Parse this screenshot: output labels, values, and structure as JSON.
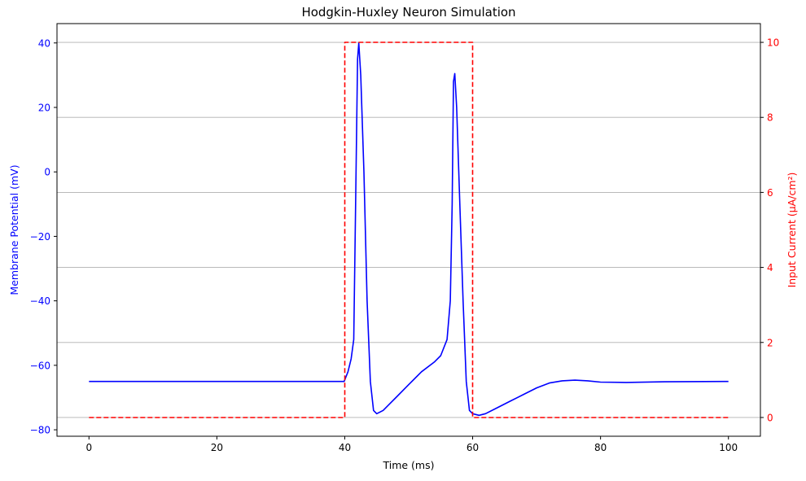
{
  "chart_data": {
    "type": "line",
    "title": "Hodgkin-Huxley Neuron Simulation",
    "xlabel": "Time (ms)",
    "ylabel": "Membrane Potential (mV)",
    "y2label": "Input Current (μA/cm²)",
    "xlim": [
      -5,
      105
    ],
    "ylim": [
      -82,
      46
    ],
    "y2lim": [
      -0.5,
      10.5
    ],
    "x_ticks": [
      0,
      20,
      40,
      60,
      80,
      100
    ],
    "x_tick_labels": [
      "0",
      "20",
      "40",
      "60",
      "80",
      "100"
    ],
    "y_ticks": [
      -80,
      -60,
      -40,
      -20,
      0,
      20,
      40
    ],
    "y_tick_labels": [
      "−80",
      "−60",
      "−40",
      "−20",
      "0",
      "20",
      "40"
    ],
    "y2_ticks": [
      0,
      2,
      4,
      6,
      8,
      10
    ],
    "y2_tick_labels": [
      "0",
      "2",
      "4",
      "6",
      "8",
      "10"
    ],
    "grid": "horizontal lines at right-axis ticks",
    "colors": {
      "voltage": "#0000ff",
      "current": "#ff0000",
      "grid": "#b0b0b0",
      "axis": "#000000"
    },
    "series": [
      {
        "axis": "left",
        "style": "solid",
        "x": [
          0,
          10,
          20,
          30,
          39.9,
          40.5,
          41,
          41.4,
          41.7,
          42,
          42.2,
          42.5,
          43,
          43.5,
          44,
          44.5,
          45,
          46,
          47,
          48,
          50,
          52,
          54,
          55,
          56,
          56.5,
          56.8,
          57,
          57.2,
          57.5,
          58,
          58.5,
          59,
          59.5,
          60,
          61,
          62,
          64,
          66,
          68,
          70,
          72,
          74,
          76,
          78,
          80,
          84,
          90,
          100
        ],
        "values": [
          -65,
          -65,
          -65,
          -65,
          -65,
          -62,
          -58,
          -52,
          -10,
          35,
          40,
          30,
          0,
          -40,
          -65,
          -74,
          -75,
          -74,
          -72,
          -70,
          -66,
          -62,
          -59,
          -57,
          -52,
          -40,
          -10,
          28,
          30.5,
          20,
          -10,
          -40,
          -65,
          -74,
          -75,
          -75.5,
          -75,
          -73,
          -71,
          -69,
          -67,
          -65.5,
          -64.8,
          -64.6,
          -64.8,
          -65.2,
          -65.3,
          -65.1,
          -65
        ]
      },
      {
        "axis": "right",
        "style": "dashed",
        "x": [
          0,
          40,
          40,
          60,
          60,
          100
        ],
        "values": [
          0,
          0,
          10,
          10,
          0,
          0
        ]
      }
    ]
  }
}
